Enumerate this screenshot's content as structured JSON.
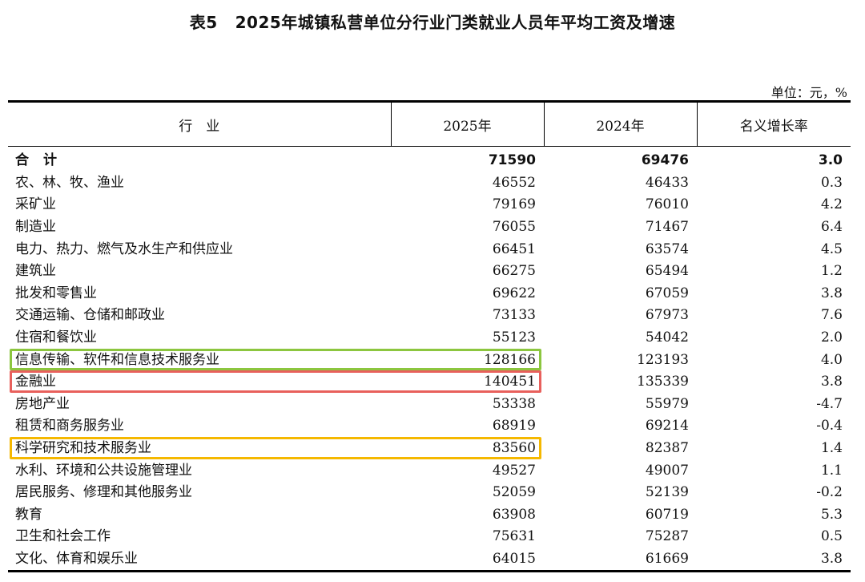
{
  "title": {
    "number": "表5",
    "text": "2025年城镇私营单位分行业门类就业人员年平均工资及增速"
  },
  "unit_note": "单位：元，%",
  "table": {
    "headers": [
      "行　业",
      "2025年",
      "2024年",
      "名义增长率"
    ],
    "total": {
      "name": "合计",
      "v2025": "71590",
      "v2024": "69476",
      "growth": "3.0"
    },
    "rows": [
      {
        "name": "农、林、牧、渔业",
        "v2025": "46552",
        "v2024": "46433",
        "growth": "0.3"
      },
      {
        "name": "采矿业",
        "v2025": "79169",
        "v2024": "76010",
        "growth": "4.2"
      },
      {
        "name": "制造业",
        "v2025": "76055",
        "v2024": "71467",
        "growth": "6.4"
      },
      {
        "name": "电力、热力、燃气及水生产和供应业",
        "v2025": "66451",
        "v2024": "63574",
        "growth": "4.5"
      },
      {
        "name": "建筑业",
        "v2025": "66275",
        "v2024": "65494",
        "growth": "1.2"
      },
      {
        "name": "批发和零售业",
        "v2025": "69622",
        "v2024": "67059",
        "growth": "3.8"
      },
      {
        "name": "交通运输、仓储和邮政业",
        "v2025": "73133",
        "v2024": "67973",
        "growth": "7.6"
      },
      {
        "name": "住宿和餐饮业",
        "v2025": "55123",
        "v2024": "54042",
        "growth": "2.0"
      },
      {
        "name": "信息传输、软件和信息技术服务业",
        "v2025": "128166",
        "v2024": "123193",
        "growth": "4.0"
      },
      {
        "name": "金融业",
        "v2025": "140451",
        "v2024": "135339",
        "growth": "3.8"
      },
      {
        "name": "房地产业",
        "v2025": "53338",
        "v2024": "55979",
        "growth": "-4.7"
      },
      {
        "name": "租赁和商务服务业",
        "v2025": "68919",
        "v2024": "69214",
        "growth": "-0.4"
      },
      {
        "name": "科学研究和技术服务业",
        "v2025": "83560",
        "v2024": "82387",
        "growth": "1.4"
      },
      {
        "name": "水利、环境和公共设施管理业",
        "v2025": "49527",
        "v2024": "49007",
        "growth": "1.1"
      },
      {
        "name": "居民服务、修理和其他服务业",
        "v2025": "52059",
        "v2024": "52139",
        "growth": "-0.2"
      },
      {
        "name": "教育",
        "v2025": "63908",
        "v2024": "60719",
        "growth": "5.3"
      },
      {
        "name": "卫生和社会工作",
        "v2025": "75631",
        "v2024": "75287",
        "growth": "0.5"
      },
      {
        "name": "文化、体育和娱乐业",
        "v2025": "64015",
        "v2024": "61669",
        "growth": "3.8"
      }
    ]
  },
  "highlights": {
    "information_tech": "#8cc63f",
    "finance": "#e8605c",
    "scientific_research": "#f5b800"
  }
}
